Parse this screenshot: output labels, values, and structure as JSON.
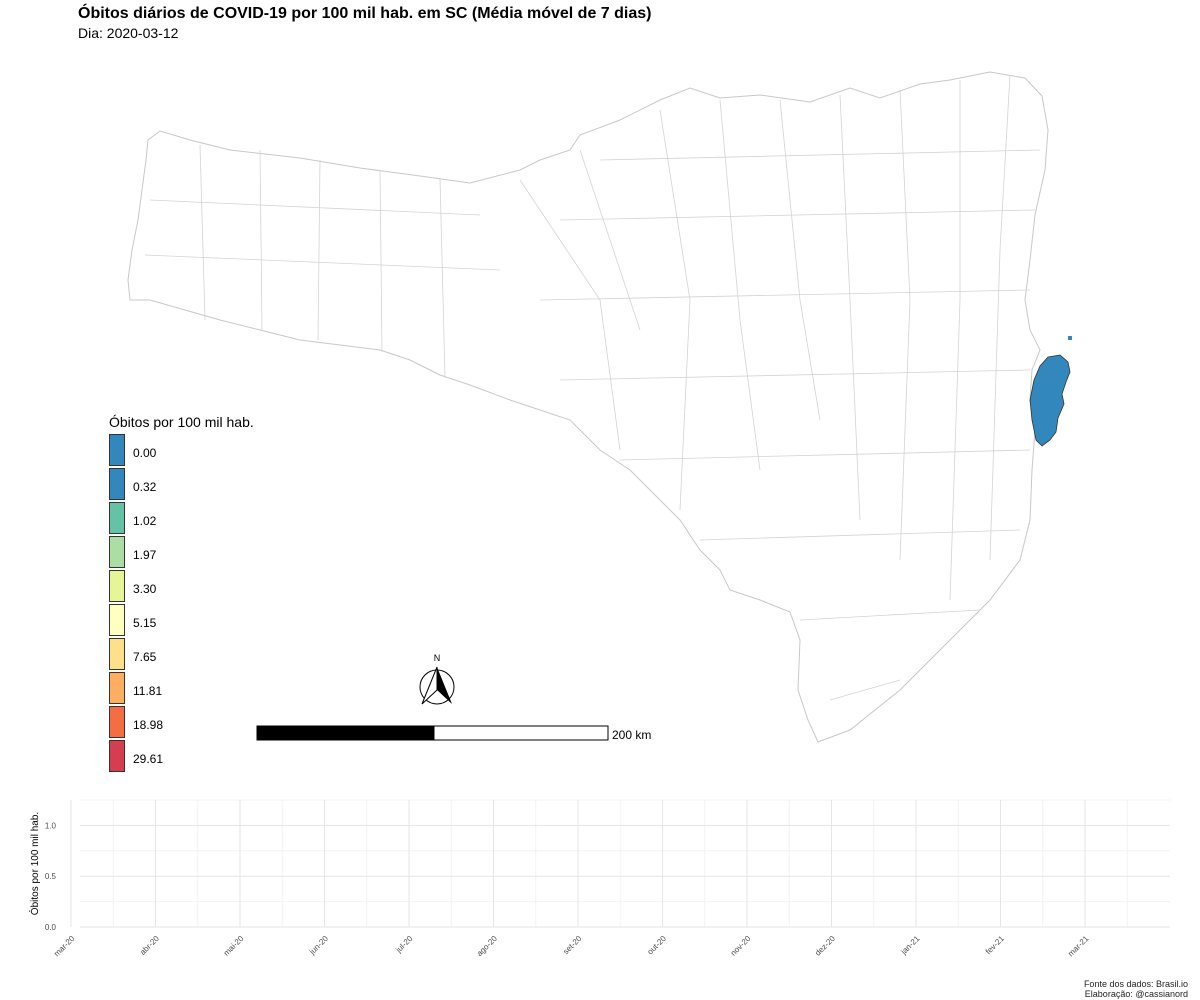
{
  "header": {
    "title": "Óbitos diários de COVID-19 por 100 mil hab. em SC (Média móvel de 7 dias)",
    "subtitle": "Dia: 2020-03-12"
  },
  "map": {
    "state_fill": "#ffffff",
    "border_color": "#c8c8c8",
    "highlight": {
      "value": "0.00",
      "fill": "#3288bd"
    }
  },
  "legend": {
    "title": "Óbitos por 100 mil hab.",
    "items": [
      {
        "label": "0.00",
        "color": "#3288bd"
      },
      {
        "label": "0.32",
        "color": "#3288bd"
      },
      {
        "label": "1.02",
        "color": "#66c2a5"
      },
      {
        "label": "1.97",
        "color": "#abdda4"
      },
      {
        "label": "3.30",
        "color": "#e6f598"
      },
      {
        "label": "5.15",
        "color": "#ffffbf"
      },
      {
        "label": "7.65",
        "color": "#fee08b"
      },
      {
        "label": "11.81",
        "color": "#fdae61"
      },
      {
        "label": "18.98",
        "color": "#f46d43"
      },
      {
        "label": "29.61",
        "color": "#d53e4f"
      }
    ]
  },
  "north_arrow": {
    "label": "N"
  },
  "scale_bar": {
    "label": "200 km"
  },
  "chart_data": {
    "type": "line",
    "ylabel": "Óbitos por 100 mil hab.",
    "xlabel": "",
    "ylim": [
      0,
      1.25
    ],
    "y_ticks": [
      "0.0",
      "0.5",
      "1.0"
    ],
    "x_ticks": [
      "mar-20",
      "abr-20",
      "mai-20",
      "jun-20",
      "jul-20",
      "ago-20",
      "set-20",
      "out-20",
      "nov-20",
      "dez-20",
      "jan-21",
      "fev-21",
      "mar-21"
    ],
    "series": [],
    "grid": true
  },
  "footer": {
    "source": "Fonte dos dados: Brasil.io",
    "credit": "Elaboração: @cassianord"
  }
}
